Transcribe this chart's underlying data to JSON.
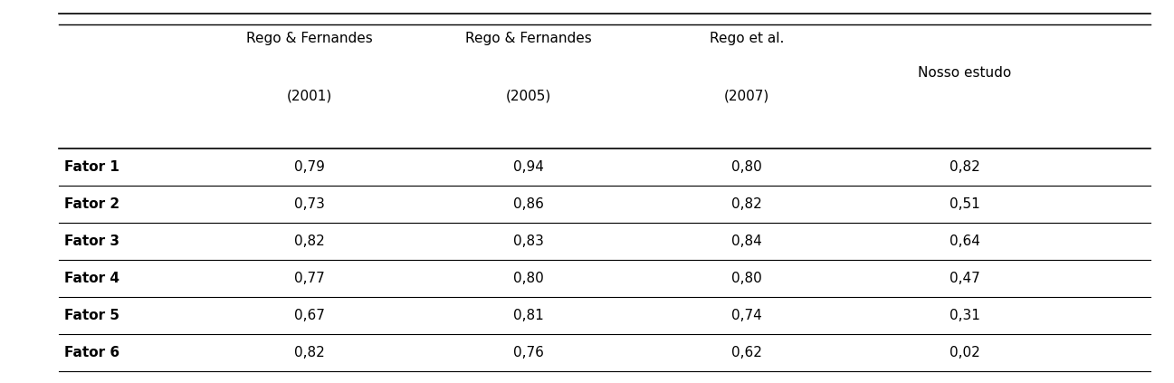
{
  "col_headers": [
    [
      "Rego & Fernandes",
      "(2001)"
    ],
    [
      "Rego & Fernandes",
      "(2005)"
    ],
    [
      "Rego et al.",
      "(2007)"
    ],
    [
      "Nosso estudo",
      ""
    ]
  ],
  "row_labels": [
    "Fator 1",
    "Fator 2",
    "Fator 3",
    "Fator 4",
    "Fator 5",
    "Fator 6"
  ],
  "data": [
    [
      "0,79",
      "0,94",
      "0,80",
      "0,82"
    ],
    [
      "0,73",
      "0,86",
      "0,82",
      "0,51"
    ],
    [
      "0,82",
      "0,83",
      "0,84",
      "0,64"
    ],
    [
      "0,77",
      "0,80",
      "0,80",
      "0,47"
    ],
    [
      "0,67",
      "0,81",
      "0,74",
      "0,31"
    ],
    [
      "0,82",
      "0,76",
      "0,62",
      "0,02"
    ]
  ],
  "background_color": "#ffffff",
  "text_color": "#000000",
  "header_fontsize": 11,
  "cell_fontsize": 11,
  "row_label_fontsize": 11,
  "figsize": [
    12.97,
    4.23
  ],
  "dpi": 100
}
